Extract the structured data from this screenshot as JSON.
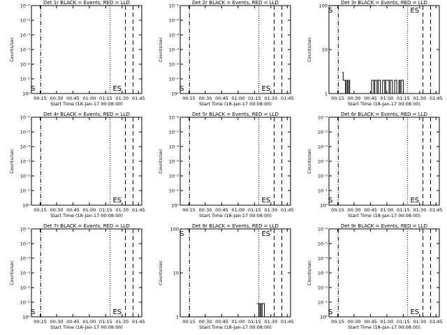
{
  "xlabel": "Start Time (18-Jan-17 00:08:00)",
  "ylabel": "Counts/sec",
  "x_ticks": [
    "00:15",
    "00:30",
    "00:45",
    "01:00",
    "01:15",
    "01:30",
    "01:45"
  ],
  "colors": {
    "events": "#000000",
    "lld": "#ff0000",
    "background": "#ffffff"
  },
  "chart_data": [
    {
      "type": "line",
      "title": "Det 1r BLACK = Events, RED = LLD",
      "yscale": "log",
      "y_ticks": [
        "10⁰",
        "10⁻¹",
        "10⁻²",
        "10⁻³",
        "10⁻⁴",
        "10⁻⁵",
        "10⁻⁶"
      ],
      "ylim": [
        1e-06,
        1
      ],
      "xlim_min": [
        7,
        108
      ],
      "vlines": {
        "dashdot": [
          15.5
        ],
        "dotted": [
          79
        ],
        "dashed": [
          93,
          100
        ]
      },
      "markers": [
        {
          "text": "S",
          "at_min": 8.5
        },
        {
          "text": "E",
          "at_min": 83.5
        },
        {
          "text": "S",
          "at_min": 87.5
        }
      ],
      "series": []
    },
    {
      "type": "line",
      "title": "Det 2r BLACK = Events, RED = LLD",
      "yscale": "log",
      "y_ticks": [
        "10⁰",
        "10⁻¹",
        "10⁻²",
        "10⁻³",
        "10⁻⁴",
        "10⁻⁵",
        "10⁻⁶"
      ],
      "ylim": [
        1e-06,
        1
      ],
      "xlim_min": [
        7,
        108
      ],
      "vlines": {
        "dashdot": [
          15.5
        ],
        "dotted": [
          79
        ],
        "dashed": [
          93,
          100
        ]
      },
      "markers": [
        {
          "text": "S",
          "at_min": 8.5
        },
        {
          "text": "E",
          "at_min": 83.5
        },
        {
          "text": "S",
          "at_min": 87.5
        }
      ],
      "series": []
    },
    {
      "type": "line",
      "title": "Det 3r BLACK = Events, RED = LLD",
      "yscale": "log",
      "y_ticks": [
        "1",
        "10",
        "100"
      ],
      "ylim": [
        1,
        100
      ],
      "xlim_min": [
        7,
        108
      ],
      "vlines": {
        "dashdot": [
          15.5
        ],
        "dotted": [
          79
        ],
        "dashed": [
          93,
          100
        ]
      },
      "markers": [
        {
          "text": "S",
          "at_min": 8.5
        },
        {
          "text": "E",
          "at_min": 83.5
        },
        {
          "text": "S",
          "at_min": 87.5
        }
      ],
      "series": [
        {
          "color": "#000000",
          "x_min": [
            19,
            20,
            21,
            22,
            23,
            24,
            25,
            26,
            27,
            28,
            45,
            46,
            47,
            48,
            49,
            50,
            51,
            52,
            53,
            54,
            55,
            56,
            57,
            58,
            59,
            60,
            61,
            62,
            63,
            64,
            65,
            66,
            67,
            68,
            69,
            70,
            71,
            72,
            73,
            74,
            75
          ],
          "y": [
            3,
            2,
            2,
            1,
            2,
            1,
            2,
            1,
            1,
            1,
            1,
            2,
            2,
            1,
            2,
            2,
            1,
            2,
            2,
            1,
            1,
            2,
            2,
            1,
            2,
            2,
            2,
            1,
            2,
            2,
            1,
            1,
            2,
            2,
            1,
            1,
            2,
            1,
            2,
            2,
            1
          ]
        },
        {
          "color": "#ff0000",
          "x_min": [
            50,
            51,
            52,
            53
          ],
          "y": [
            100,
            100,
            100,
            100
          ]
        }
      ]
    },
    {
      "type": "line",
      "title": "Det 4r BLACK = Events, RED = LLD",
      "yscale": "log",
      "y_ticks": [
        "10⁰",
        "10⁻¹",
        "10⁻²",
        "10⁻³",
        "10⁻⁴",
        "10⁻⁵",
        "10⁻⁶"
      ],
      "ylim": [
        1e-06,
        1
      ],
      "xlim_min": [
        7,
        108
      ],
      "vlines": {
        "dashdot": [
          15.5
        ],
        "dotted": [
          79
        ],
        "dashed": [
          93,
          100
        ]
      },
      "markers": [
        {
          "text": "E",
          "at_min": 83.5
        },
        {
          "text": "S",
          "at_min": 87.5
        }
      ],
      "series": []
    },
    {
      "type": "line",
      "title": "Det 5r BLACK = Events, RED = LLD",
      "yscale": "log",
      "y_ticks": [
        "10⁰",
        "10⁻¹",
        "10⁻²",
        "10⁻³",
        "10⁻⁴",
        "10⁻⁵",
        "10⁻⁶"
      ],
      "ylim": [
        1e-06,
        1
      ],
      "xlim_min": [
        7,
        108
      ],
      "vlines": {
        "dashdot": [
          15.5
        ],
        "dotted": [
          79
        ],
        "dashed": [
          93,
          100
        ]
      },
      "markers": [
        {
          "text": "E",
          "at_min": 83.5
        },
        {
          "text": "S",
          "at_min": 87.5
        }
      ],
      "series": []
    },
    {
      "type": "line",
      "title": "Det 6r BLACK = Events, RED = LLD",
      "yscale": "log",
      "y_ticks": [
        "10⁰",
        "10⁻¹",
        "10⁻²",
        "10⁻³",
        "10⁻⁴",
        "10⁻⁵",
        "10⁻⁶"
      ],
      "ylim": [
        1e-06,
        1
      ],
      "xlim_min": [
        7,
        108
      ],
      "vlines": {
        "dashdot": [
          15.5
        ],
        "dotted": [
          79
        ],
        "dashed": [
          93,
          100
        ]
      },
      "markers": [
        {
          "text": "S",
          "at_min": 8.5
        },
        {
          "text": "E",
          "at_min": 83.5
        },
        {
          "text": "S",
          "at_min": 87.5
        }
      ],
      "series": []
    },
    {
      "type": "line",
      "title": "Det 7r BLACK = Events, RED = LLD",
      "yscale": "log",
      "y_ticks": [
        "10⁰",
        "10⁻¹",
        "10⁻²",
        "10⁻³",
        "10⁻⁴",
        "10⁻⁵",
        "10⁻⁶"
      ],
      "ylim": [
        1e-06,
        1
      ],
      "xlim_min": [
        7,
        108
      ],
      "vlines": {
        "dashdot": [
          15.5
        ],
        "dotted": [
          79
        ],
        "dashed": [
          93,
          100
        ]
      },
      "markers": [
        {
          "text": "S",
          "at_min": 8.5
        },
        {
          "text": "E",
          "at_min": 83.5
        },
        {
          "text": "S",
          "at_min": 87.5
        }
      ],
      "series": []
    },
    {
      "type": "line",
      "title": "Det 8r BLACK = Events, RED = LLD",
      "yscale": "log",
      "y_ticks": [
        "1",
        "10",
        "100"
      ],
      "ylim": [
        1,
        100
      ],
      "xlim_min": [
        7,
        108
      ],
      "vlines": {
        "dashdot": [
          15.5
        ],
        "dotted": [
          79
        ],
        "dashed": [
          93,
          100
        ]
      },
      "markers": [
        {
          "text": "S",
          "at_min": 8.5
        },
        {
          "text": "E",
          "at_min": 83.5
        },
        {
          "text": "S",
          "at_min": 87.5
        }
      ],
      "series": [
        {
          "color": "#000000",
          "x_min": [
            77,
            78,
            79,
            80,
            81,
            82,
            83,
            84
          ],
          "y": [
            2,
            2,
            1,
            2,
            1,
            2,
            2,
            1
          ]
        }
      ]
    },
    {
      "type": "line",
      "title": "Det 9r BLACK = Events, RED = LLD",
      "yscale": "log",
      "y_ticks": [
        "10⁰",
        "10⁻¹",
        "10⁻²",
        "10⁻³",
        "10⁻⁴",
        "10⁻⁵",
        "10⁻⁶"
      ],
      "ylim": [
        1e-06,
        1
      ],
      "xlim_min": [
        7,
        108
      ],
      "vlines": {
        "dashdot": [
          15.5
        ],
        "dotted": [
          79
        ],
        "dashed": [
          93,
          100
        ]
      },
      "markers": [
        {
          "text": "S",
          "at_min": 8.5
        },
        {
          "text": "E",
          "at_min": 83.5
        },
        {
          "text": "S",
          "at_min": 87.5
        }
      ],
      "series": []
    }
  ]
}
